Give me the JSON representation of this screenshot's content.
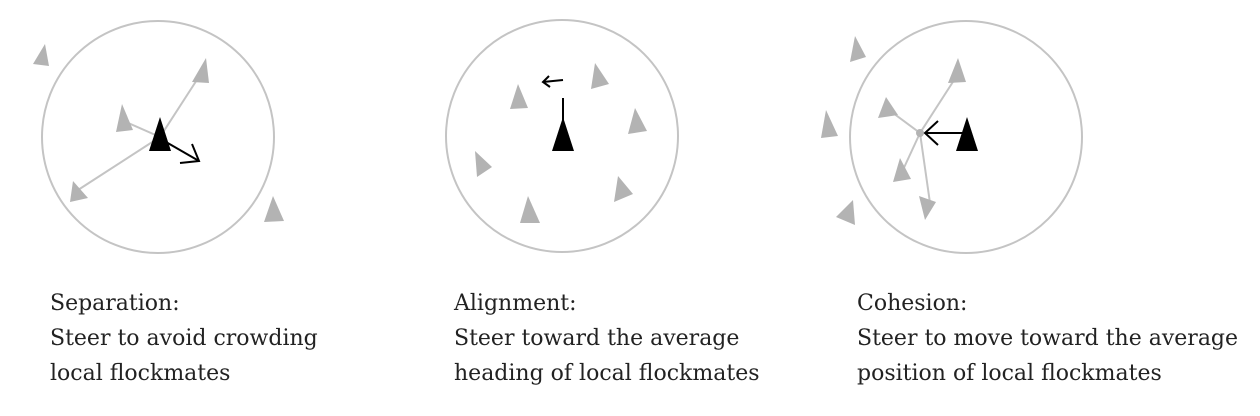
{
  "colors": {
    "neighbor": "#b3b3b3",
    "boid": "#000000",
    "circle": "#c4c4c4",
    "line": "#c4c4c4",
    "text": "#222222"
  },
  "panels": [
    {
      "title": "Separation:",
      "line1": "Steer to avoid crowding",
      "line2": "local flockmates"
    },
    {
      "title": "Alignment:",
      "line1": "Steer toward the average",
      "line2": "heading of local flockmates"
    },
    {
      "title": "Cohesion:",
      "line1": "Steer to move toward the average",
      "line2": "position of local flockmates"
    }
  ]
}
